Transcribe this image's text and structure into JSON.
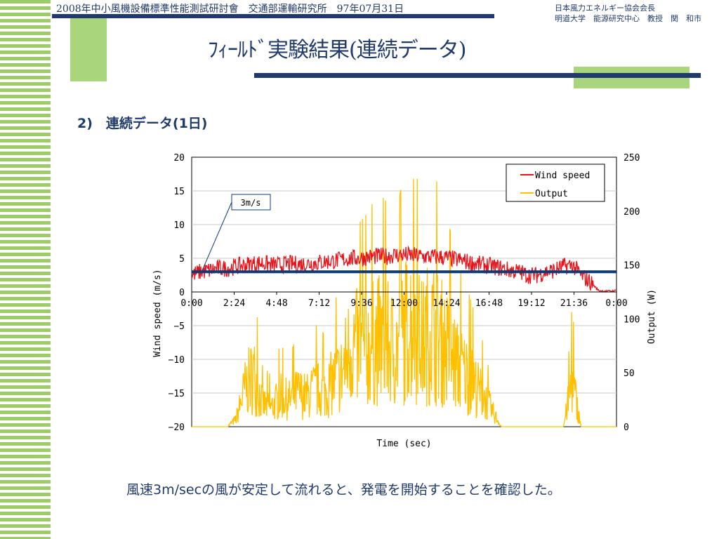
{
  "header": {
    "left": "2008年中小風機設備標準性能測試研討會　交通部運輸研究所　97年07月31日",
    "right_line1": "日本風力エネルギー協会会長",
    "right_line2": "明道大学　能源研究中心　教授　関　和市"
  },
  "title": "ﾌｨｰﾙﾄﾞ実験結果(連続データ)",
  "subtitle": "2)　連続データ(1日)",
  "caption": "風速3m/secの風が安定して流れると、発電を開始することを確認した。",
  "colors": {
    "navy": "#1f3a6b",
    "green": "#9ccc65",
    "wind": "#e8141b",
    "output": "#ffc000",
    "threshold": "#0d3a75"
  },
  "chart_data": {
    "type": "line",
    "xlabel": "Time (sec)",
    "ylabel_left": "Wind speed (m/s)",
    "ylabel_right": "Output (W)",
    "x_ticks": [
      "0:00",
      "2:24",
      "4:48",
      "7:12",
      "9:36",
      "12:00",
      "14:24",
      "16:48",
      "19:12",
      "21:36",
      "0:00"
    ],
    "x_range_hours": [
      0,
      24
    ],
    "ylim_left": [
      -20,
      20
    ],
    "yticks_left": [
      -20,
      -15,
      -10,
      -5,
      0,
      5,
      10,
      15,
      20
    ],
    "ylim_right": [
      0,
      250
    ],
    "yticks_right": [
      0,
      50,
      100,
      150,
      200,
      250
    ],
    "grid": "horizontal",
    "legend": {
      "position": "top-right",
      "entries": [
        "Wind speed",
        "Output"
      ]
    },
    "annotation": {
      "text": "3m/s",
      "value": 3
    },
    "series": [
      {
        "name": "Wind speed",
        "axis": "left",
        "x_hours": [
          0,
          0.5,
          1,
          1.5,
          2,
          2.5,
          3,
          3.5,
          4,
          4.5,
          5,
          5.5,
          6,
          6.5,
          7,
          7.5,
          8,
          8.5,
          9,
          9.5,
          10,
          10.5,
          11,
          11.5,
          12,
          12.5,
          13,
          13.5,
          14,
          14.5,
          15,
          15.5,
          16,
          16.5,
          17,
          17.5,
          18,
          18.5,
          19,
          19.5,
          20,
          20.5,
          21,
          21.5,
          22,
          22.5,
          23,
          23.5,
          24
        ],
        "values": [
          2.5,
          3.0,
          3.2,
          3.5,
          3.5,
          3.8,
          4.0,
          4.2,
          4.3,
          4.0,
          4.0,
          4.2,
          4.1,
          4.2,
          4.3,
          4.5,
          4.6,
          4.8,
          5.0,
          5.0,
          5.2,
          5.3,
          5.3,
          5.5,
          5.5,
          5.4,
          5.3,
          5.2,
          5.2,
          5.0,
          4.8,
          4.5,
          4.2,
          4.0,
          3.8,
          3.5,
          3.2,
          3.0,
          2.5,
          2.5,
          3.0,
          3.2,
          3.8,
          4.0,
          2.5,
          1.5,
          0.2,
          0.1,
          0.2
        ]
      },
      {
        "name": "Output",
        "axis": "right",
        "x_hours": [
          0,
          1,
          2,
          2.5,
          3,
          3.5,
          4,
          4.5,
          5,
          5.5,
          6,
          6.5,
          7,
          7.5,
          8,
          8.5,
          9,
          9.5,
          10,
          10.5,
          11,
          11.5,
          12,
          12.5,
          13,
          13.5,
          14,
          14.5,
          15,
          15.5,
          16,
          16.5,
          17,
          17.5,
          18,
          18.5,
          19,
          19.5,
          20,
          20.5,
          21,
          21.5,
          22,
          22.5,
          23,
          24
        ],
        "values": [
          0,
          0,
          0,
          10,
          50,
          70,
          30,
          25,
          40,
          35,
          45,
          40,
          50,
          45,
          60,
          70,
          110,
          100,
          105,
          115,
          110,
          100,
          125,
          140,
          110,
          130,
          115,
          100,
          80,
          70,
          55,
          40,
          20,
          0,
          0,
          0,
          0,
          0,
          0,
          0,
          0,
          60,
          0,
          0,
          0,
          0
        ]
      }
    ]
  }
}
